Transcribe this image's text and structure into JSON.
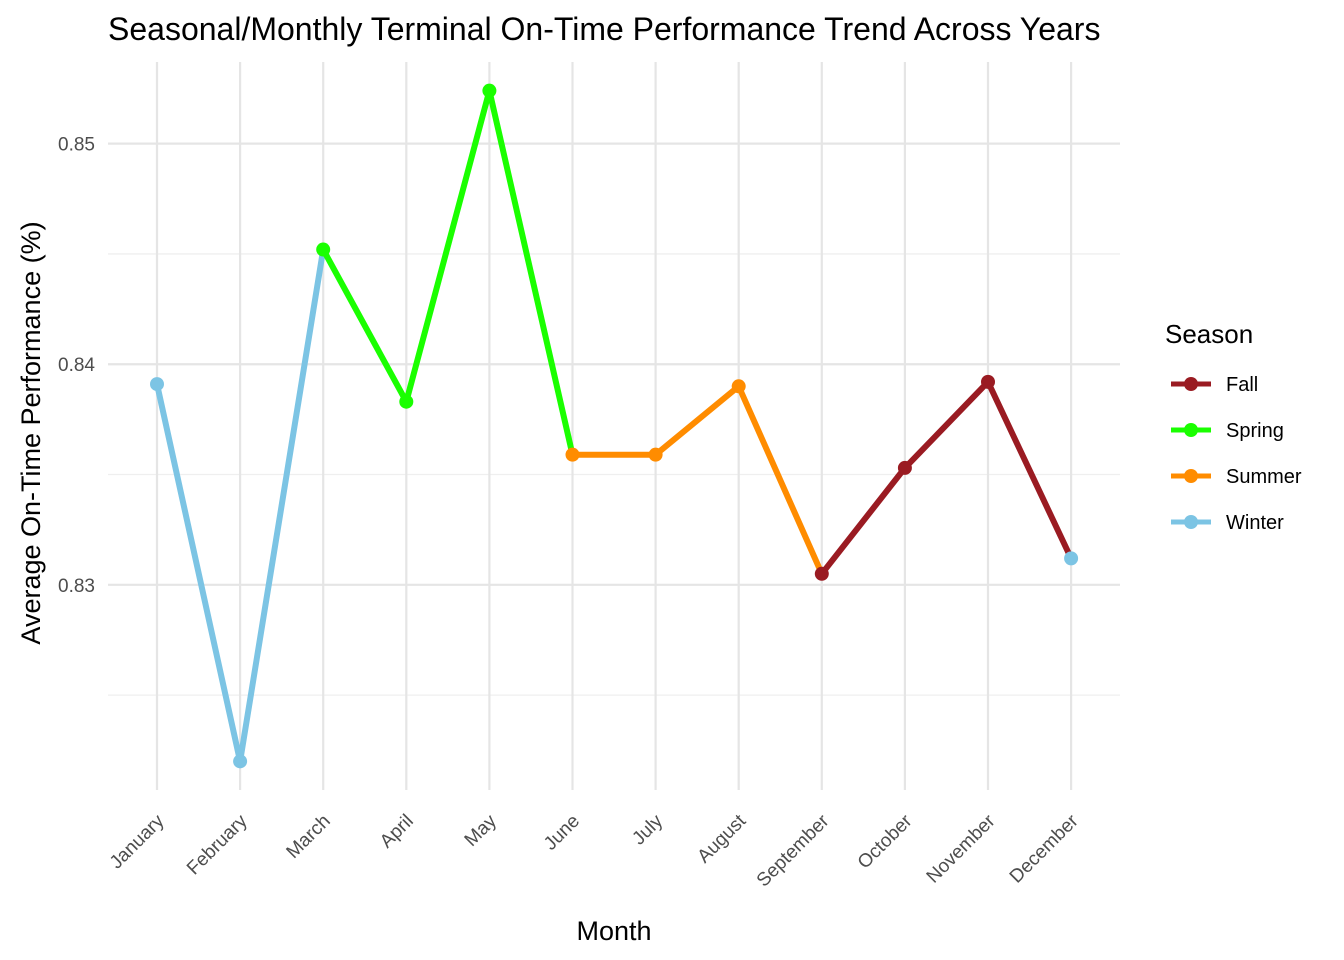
{
  "chart_data": {
    "type": "line",
    "title": "Seasonal/Monthly Terminal On-Time Performance Trend Across Years",
    "xlabel": "Month",
    "ylabel": "Average On-Time Performance (%)",
    "categories": [
      "January",
      "February",
      "March",
      "April",
      "May",
      "June",
      "July",
      "August",
      "September",
      "October",
      "November",
      "December"
    ],
    "values": [
      0.8391,
      0.822,
      0.8452,
      0.8383,
      0.8524,
      0.8359,
      0.8359,
      0.839,
      0.8305,
      0.8353,
      0.8392,
      0.8312
    ],
    "point_season": [
      "Winter",
      "Winter",
      "Spring",
      "Spring",
      "Spring",
      "Summer",
      "Summer",
      "Summer",
      "Fall",
      "Fall",
      "Fall",
      "Winter"
    ],
    "segments": [
      {
        "season": "Winter",
        "from": 0,
        "to": 2
      },
      {
        "season": "Spring",
        "from": 2,
        "to": 5
      },
      {
        "season": "Summer",
        "from": 5,
        "to": 8
      },
      {
        "season": "Fall",
        "from": 8,
        "to": 11
      }
    ],
    "y_ticks": [
      0.83,
      0.84,
      0.85
    ],
    "y_tick_labels": [
      "0.83",
      "0.84",
      "0.85"
    ],
    "ylim": [
      0.8207,
      0.8537
    ],
    "grid": true,
    "legend": {
      "title": "Season",
      "placement": "right",
      "entries": [
        "Fall",
        "Spring",
        "Summer",
        "Winter"
      ]
    },
    "colors": {
      "Fall": "#9a1b22",
      "Spring": "#1aff00",
      "Summer": "#ff8c00",
      "Winter": "#7cc4e4"
    }
  }
}
